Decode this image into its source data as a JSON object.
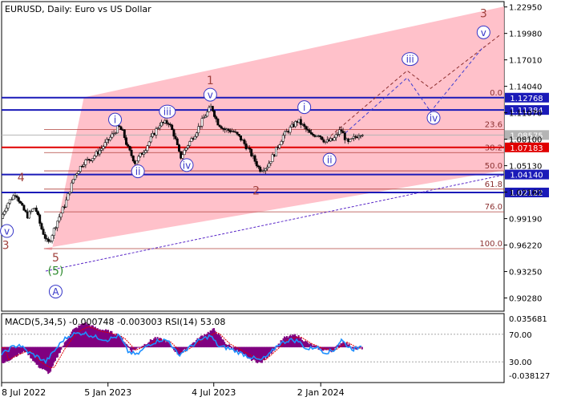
{
  "chart_data": [
    {
      "type": "candlestick",
      "title": "EURUSD, Daily:  Euro vs US Dollar",
      "y_ticks": [
        "1.22950",
        "1.19980",
        "1.17010",
        "1.14040",
        "1.11070",
        "1.08100",
        "1.05130",
        "1.02160",
        "0.99190",
        "0.96220",
        "0.93250",
        "0.90280"
      ],
      "ylim": [
        0.888,
        1.2355
      ],
      "x_ticks": [
        {
          "label": "8 Jul 2022",
          "t": 0
        },
        {
          "label": "5 Jan 2023",
          "t": 181
        },
        {
          "label": "4 Jul 2023",
          "t": 361
        },
        {
          "label": "2 Jan 2024",
          "t": 543
        }
      ],
      "price_path": [
        {
          "t": 0,
          "p": 0.992
        },
        {
          "t": 10,
          "p": 1.008
        },
        {
          "t": 25,
          "p": 1.021
        },
        {
          "t": 35,
          "p": 1.005
        },
        {
          "t": 45,
          "p": 0.995
        },
        {
          "t": 58,
          "p": 1.005
        },
        {
          "t": 68,
          "p": 0.982
        },
        {
          "t": 80,
          "p": 0.963
        },
        {
          "t": 95,
          "p": 0.988
        },
        {
          "t": 110,
          "p": 1.01
        },
        {
          "t": 125,
          "p": 1.04
        },
        {
          "t": 140,
          "p": 1.055
        },
        {
          "t": 155,
          "p": 1.06
        },
        {
          "t": 170,
          "p": 1.07
        },
        {
          "t": 185,
          "p": 1.082
        },
        {
          "t": 200,
          "p": 1.095
        },
        {
          "t": 208,
          "p": 1.088
        },
        {
          "t": 215,
          "p": 1.072
        },
        {
          "t": 228,
          "p": 1.055
        },
        {
          "t": 245,
          "p": 1.07
        },
        {
          "t": 258,
          "p": 1.085
        },
        {
          "t": 270,
          "p": 1.098
        },
        {
          "t": 285,
          "p": 1.1
        },
        {
          "t": 295,
          "p": 1.085
        },
        {
          "t": 305,
          "p": 1.06
        },
        {
          "t": 318,
          "p": 1.075
        },
        {
          "t": 330,
          "p": 1.087
        },
        {
          "t": 345,
          "p": 1.105
        },
        {
          "t": 358,
          "p": 1.118
        },
        {
          "t": 368,
          "p": 1.1
        },
        {
          "t": 380,
          "p": 1.092
        },
        {
          "t": 395,
          "p": 1.09
        },
        {
          "t": 410,
          "p": 1.08
        },
        {
          "t": 425,
          "p": 1.065
        },
        {
          "t": 440,
          "p": 1.047
        },
        {
          "t": 452,
          "p": 1.05
        },
        {
          "t": 465,
          "p": 1.065
        },
        {
          "t": 480,
          "p": 1.085
        },
        {
          "t": 495,
          "p": 1.095
        },
        {
          "t": 505,
          "p": 1.102
        },
        {
          "t": 515,
          "p": 1.095
        },
        {
          "t": 528,
          "p": 1.085
        },
        {
          "t": 540,
          "p": 1.087
        },
        {
          "t": 552,
          "p": 1.078
        },
        {
          "t": 565,
          "p": 1.08
        },
        {
          "t": 578,
          "p": 1.092
        },
        {
          "t": 590,
          "p": 1.076
        },
        {
          "t": 600,
          "p": 1.082
        },
        {
          "t": 612,
          "p": 1.088
        }
      ],
      "horizontal_levels": [
        {
          "label": "1.12768",
          "price": 1.12768,
          "color": "#1a1ab8"
        },
        {
          "label": "1.11384",
          "price": 1.11384,
          "color": "#1a1ab8"
        },
        {
          "label": "1.08575",
          "price": 1.08575,
          "color": "#b4b4b4"
        },
        {
          "label": "1.07183",
          "price": 1.07183,
          "color": "#e00000"
        },
        {
          "label": "1.04140",
          "price": 1.0414,
          "color": "#1a1ab8"
        },
        {
          "label": "1.02122",
          "price": 1.02122,
          "color": "#1a1ab8"
        }
      ],
      "fib_levels": [
        {
          "label": "0.0",
          "price": 1.12768
        },
        {
          "label": "23.6",
          "price": 1.092
        },
        {
          "label": "38.2",
          "price": 1.066
        },
        {
          "label": "50.0",
          "price": 1.0455
        },
        {
          "label": "61.8",
          "price": 1.025
        },
        {
          "label": "76.0",
          "price": 0.9995
        },
        {
          "label": "100.0",
          "price": 0.9582
        }
      ],
      "channel": {
        "upper": [
          {
            "t": 140,
            "p": 1.128
          },
          {
            "t": 855,
            "p": 1.23
          }
        ],
        "lower": [
          {
            "t": 70,
            "p": 0.9582
          },
          {
            "t": 855,
            "p": 1.046
          }
        ],
        "color": "#ffb6c1"
      },
      "projection_paths": [
        [
          {
            "t": 560,
            "p": 1.085
          },
          {
            "t": 690,
            "p": 1.158
          },
          {
            "t": 730,
            "p": 1.138
          },
          {
            "t": 850,
            "p": 1.199
          }
        ],
        [
          {
            "t": 585,
            "p": 1.088
          },
          {
            "t": 690,
            "p": 1.15
          },
          {
            "t": 730,
            "p": 1.112
          },
          {
            "t": 820,
            "p": 1.185
          }
        ]
      ],
      "trendline": [
        {
          "t": 75,
          "p": 0.933
        },
        {
          "t": 855,
          "p": 1.041
        }
      ],
      "wave_labels": [
        {
          "text": "3",
          "t": 820,
          "p": 1.222,
          "style": "plain",
          "color": "#a0403c"
        },
        {
          "text": "v",
          "t": 820,
          "p": 1.201,
          "style": "circle",
          "color": "#3636c8"
        },
        {
          "text": "iii",
          "t": 695,
          "p": 1.171,
          "style": "circle",
          "color": "#3636c8"
        },
        {
          "text": "iv",
          "t": 735,
          "p": 1.105,
          "style": "circle",
          "color": "#3636c8"
        },
        {
          "text": "1",
          "t": 355,
          "p": 1.147,
          "style": "plain",
          "color": "#a0403c"
        },
        {
          "text": "v",
          "t": 355,
          "p": 1.131,
          "style": "circle",
          "color": "#3636c8"
        },
        {
          "text": "iii",
          "t": 282,
          "p": 1.112,
          "style": "circle",
          "color": "#3636c8"
        },
        {
          "text": "i",
          "t": 193,
          "p": 1.103,
          "style": "circle",
          "color": "#3636c8"
        },
        {
          "text": "ii",
          "t": 232,
          "p": 1.045,
          "style": "circle",
          "color": "#3636c8"
        },
        {
          "text": "iv",
          "t": 315,
          "p": 1.052,
          "style": "circle",
          "color": "#3636c8"
        },
        {
          "text": "2",
          "t": 433,
          "p": 1.023,
          "style": "plain",
          "color": "#a0403c"
        },
        {
          "text": "i",
          "t": 515,
          "p": 1.117,
          "style": "circle",
          "color": "#3636c8"
        },
        {
          "text": "ii",
          "t": 558,
          "p": 1.058,
          "style": "circle",
          "color": "#3636c8"
        },
        {
          "text": "4",
          "t": 33,
          "p": 1.038,
          "style": "plain",
          "color": "#a0403c"
        },
        {
          "text": "v",
          "t": 9,
          "p": 0.978,
          "style": "circle",
          "color": "#3636c8"
        },
        {
          "text": "3",
          "t": 7,
          "p": 0.962,
          "style": "plain",
          "color": "#a0403c"
        },
        {
          "text": "5",
          "t": 92,
          "p": 0.948,
          "style": "plain",
          "color": "#a0403c"
        },
        {
          "text": "(5)",
          "t": 92,
          "p": 0.933,
          "style": "plain",
          "color": "#2e8b2e"
        },
        {
          "text": "A",
          "t": 92,
          "p": 0.91,
          "style": "circle",
          "color": "#3636c8"
        }
      ]
    },
    {
      "type": "oscillator",
      "title": "MACD(5,34,5) -0.000748 -0.003003 RSI(14) 53.08",
      "macd_axis": [
        "0.035681",
        "-0.038127"
      ],
      "rsi_levels": [
        "70.00",
        "30.00"
      ],
      "macd_hist": [
        {
          "t": 0,
          "v": -0.018
        },
        {
          "t": 20,
          "v": -0.01
        },
        {
          "t": 40,
          "v": -0.004
        },
        {
          "t": 60,
          "v": -0.02
        },
        {
          "t": 80,
          "v": -0.028
        },
        {
          "t": 100,
          "v": -0.002
        },
        {
          "t": 120,
          "v": 0.018
        },
        {
          "t": 140,
          "v": 0.026
        },
        {
          "t": 160,
          "v": 0.02
        },
        {
          "t": 180,
          "v": 0.017
        },
        {
          "t": 200,
          "v": 0.012
        },
        {
          "t": 220,
          "v": -0.004
        },
        {
          "t": 240,
          "v": 0.002
        },
        {
          "t": 260,
          "v": 0.01
        },
        {
          "t": 280,
          "v": 0.006
        },
        {
          "t": 300,
          "v": -0.008
        },
        {
          "t": 320,
          "v": 0.002
        },
        {
          "t": 340,
          "v": 0.012
        },
        {
          "t": 360,
          "v": 0.019
        },
        {
          "t": 380,
          "v": 0.004
        },
        {
          "t": 400,
          "v": -0.004
        },
        {
          "t": 420,
          "v": -0.012
        },
        {
          "t": 440,
          "v": -0.017
        },
        {
          "t": 460,
          "v": -0.004
        },
        {
          "t": 480,
          "v": 0.01
        },
        {
          "t": 500,
          "v": 0.013
        },
        {
          "t": 520,
          "v": 0.004
        },
        {
          "t": 540,
          "v": -0.002
        },
        {
          "t": 560,
          "v": -0.004
        },
        {
          "t": 580,
          "v": 0.006
        },
        {
          "t": 600,
          "v": -0.002
        },
        {
          "t": 612,
          "v": -0.001
        }
      ],
      "rsi": [
        {
          "t": 0,
          "v": 40
        },
        {
          "t": 15,
          "v": 50
        },
        {
          "t": 30,
          "v": 55
        },
        {
          "t": 45,
          "v": 44
        },
        {
          "t": 60,
          "v": 38
        },
        {
          "t": 75,
          "v": 30
        },
        {
          "t": 90,
          "v": 46
        },
        {
          "t": 105,
          "v": 62
        },
        {
          "t": 120,
          "v": 70
        },
        {
          "t": 140,
          "v": 72
        },
        {
          "t": 160,
          "v": 66
        },
        {
          "t": 180,
          "v": 62
        },
        {
          "t": 200,
          "v": 68
        },
        {
          "t": 215,
          "v": 45
        },
        {
          "t": 230,
          "v": 40
        },
        {
          "t": 250,
          "v": 55
        },
        {
          "t": 270,
          "v": 62
        },
        {
          "t": 285,
          "v": 60
        },
        {
          "t": 300,
          "v": 40
        },
        {
          "t": 315,
          "v": 48
        },
        {
          "t": 335,
          "v": 60
        },
        {
          "t": 355,
          "v": 68
        },
        {
          "t": 370,
          "v": 52
        },
        {
          "t": 385,
          "v": 50
        },
        {
          "t": 400,
          "v": 45
        },
        {
          "t": 420,
          "v": 38
        },
        {
          "t": 440,
          "v": 32
        },
        {
          "t": 455,
          "v": 40
        },
        {
          "t": 470,
          "v": 55
        },
        {
          "t": 490,
          "v": 62
        },
        {
          "t": 505,
          "v": 60
        },
        {
          "t": 520,
          "v": 48
        },
        {
          "t": 535,
          "v": 52
        },
        {
          "t": 550,
          "v": 44
        },
        {
          "t": 565,
          "v": 46
        },
        {
          "t": 578,
          "v": 62
        },
        {
          "t": 590,
          "v": 52
        },
        {
          "t": 600,
          "v": 48
        },
        {
          "t": 612,
          "v": 53
        }
      ]
    }
  ]
}
